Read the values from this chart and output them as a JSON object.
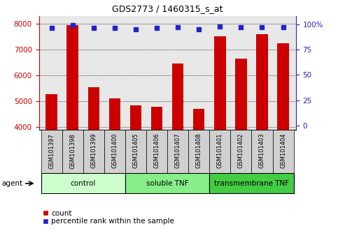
{
  "title": "GDS2773 / 1460315_s_at",
  "samples": [
    "GSM101397",
    "GSM101398",
    "GSM101399",
    "GSM101400",
    "GSM101405",
    "GSM101406",
    "GSM101407",
    "GSM101408",
    "GSM101401",
    "GSM101402",
    "GSM101403",
    "GSM101404"
  ],
  "counts": [
    5270,
    7950,
    5540,
    5110,
    4840,
    4800,
    6450,
    4720,
    7530,
    6660,
    7600,
    7250
  ],
  "percentile_ranks": [
    96,
    99,
    96,
    96,
    95,
    96,
    97,
    95,
    98,
    97,
    97,
    97
  ],
  "groups": [
    {
      "label": "control",
      "start": 0,
      "end": 4,
      "color": "#ccffcc"
    },
    {
      "label": "soluble TNF",
      "start": 4,
      "end": 8,
      "color": "#88ee88"
    },
    {
      "label": "transmembrane TNF",
      "start": 8,
      "end": 12,
      "color": "#44cc44"
    }
  ],
  "ylim_left": [
    3900,
    8300
  ],
  "ylim_right": [
    -4,
    108
  ],
  "yticks_left": [
    4000,
    5000,
    6000,
    7000,
    8000
  ],
  "yticks_right": [
    0,
    25,
    50,
    75,
    100
  ],
  "bar_color": "#cc0000",
  "dot_color": "#2222cc",
  "plot_bg": "#e8e8e8",
  "tick_bg": "#d0d0d0",
  "agent_label": "agent",
  "legend_count_label": "count",
  "legend_pct_label": "percentile rank within the sample"
}
